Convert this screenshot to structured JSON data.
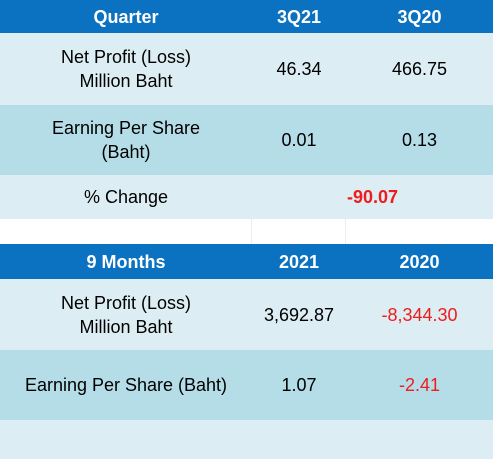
{
  "quarter_table": {
    "header": [
      "Quarter",
      "3Q21",
      "3Q20"
    ],
    "net_profit": {
      "label_line1": "Net Profit (Loss)",
      "label_line2": "Million Baht",
      "v1": "46.34",
      "v2": "466.75"
    },
    "eps": {
      "label_line1": "Earning Per Share",
      "label_line2": "(Baht)",
      "v1": "0.01",
      "v2": "0.13"
    },
    "change": {
      "label": "% Change",
      "value": "-90.07"
    }
  },
  "nine_month_table": {
    "header": [
      "9 Months",
      "2021",
      "2020"
    ],
    "net_profit": {
      "label_line1": "Net Profit (Loss)",
      "label_line2": "Million Baht",
      "v1": "3,692.87",
      "v2": "-8,344.30"
    },
    "eps": {
      "label": "Earning Per Share (Baht)",
      "v1": "1.07",
      "v2": "-2.41"
    }
  },
  "colors": {
    "header_bg": "#0b72c2",
    "row_light": "#dcedf3",
    "row_dark": "#b5dde8",
    "negative": "#ee1c1c"
  }
}
